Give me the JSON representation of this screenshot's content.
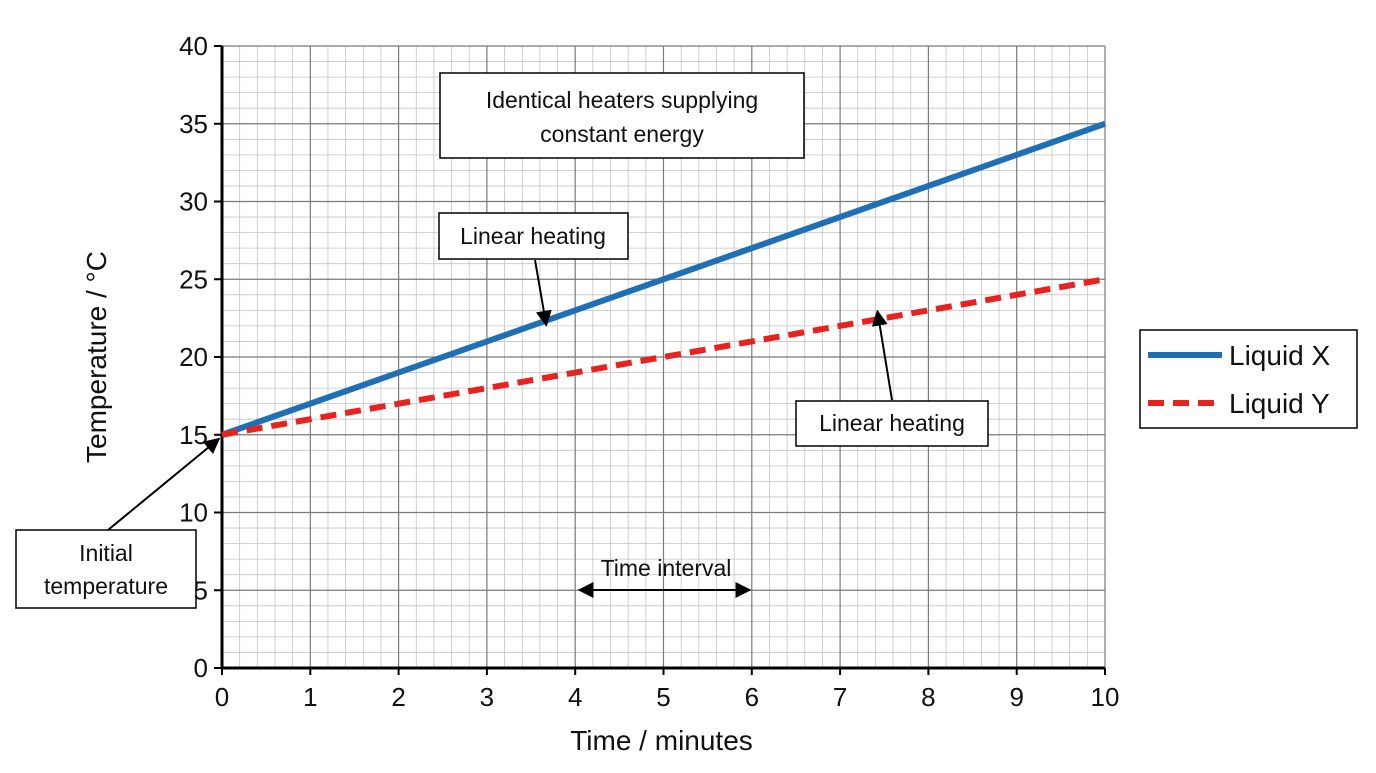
{
  "chart_data": {
    "type": "line",
    "title": "",
    "xlabel": "Time / minutes",
    "ylabel": "Temperature / °C",
    "xlim": [
      0,
      10
    ],
    "ylim": [
      0,
      40
    ],
    "xticks": [
      "0",
      "1",
      "2",
      "3",
      "4",
      "5",
      "6",
      "7",
      "8",
      "9",
      "10"
    ],
    "yticks": [
      "0",
      "5",
      "10",
      "15",
      "20",
      "25",
      "30",
      "35",
      "40"
    ],
    "grid": true,
    "legend_position": "right",
    "series": [
      {
        "name": "Liquid X",
        "style": "solid",
        "color": "#1f6fb4",
        "x": [
          0,
          10
        ],
        "y": [
          15,
          35
        ]
      },
      {
        "name": "Liquid Y",
        "style": "dashed",
        "color": "#e8231f",
        "x": [
          0,
          10
        ],
        "y": [
          15,
          25
        ]
      }
    ],
    "annotations": {
      "heaters": [
        "Identical heaters supplying",
        "constant energy"
      ],
      "linear_x": "Linear heating",
      "linear_y": "Linear heating",
      "initial": [
        "Initial",
        "temperature"
      ],
      "interval": {
        "label": "Time interval",
        "from": 4,
        "to": 6
      }
    }
  }
}
